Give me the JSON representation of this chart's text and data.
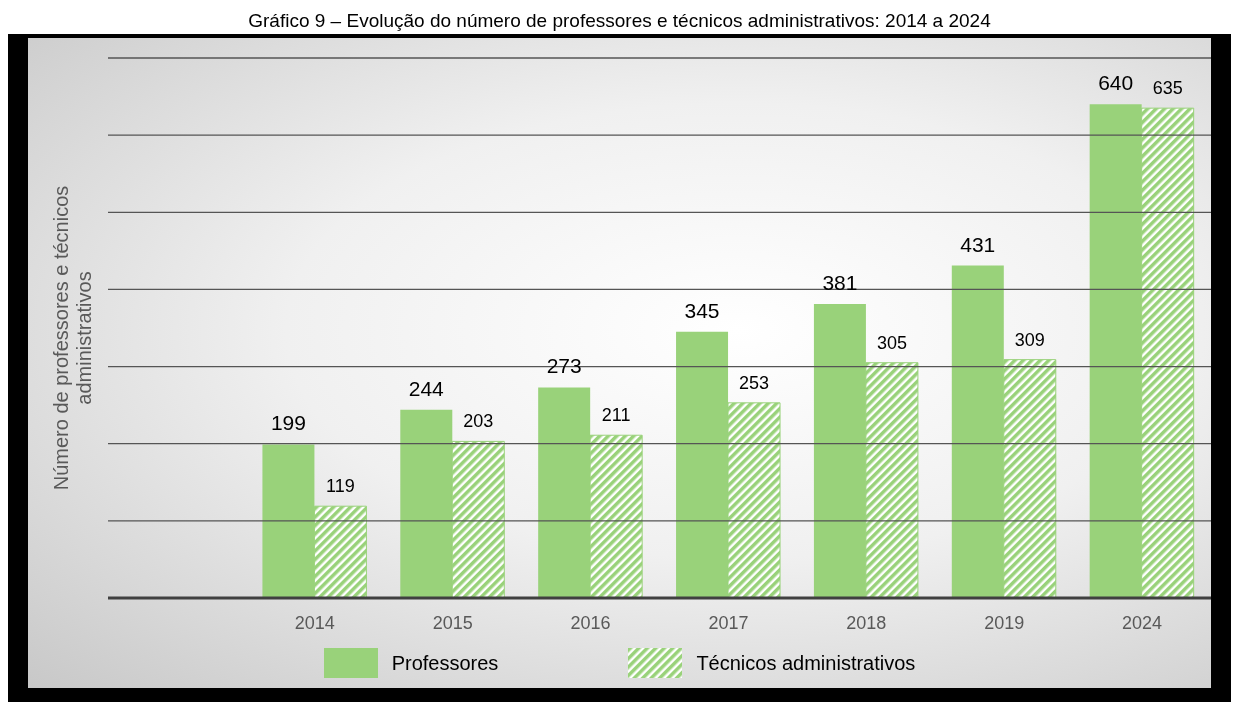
{
  "chart_data": {
    "type": "bar",
    "title": "Gráfico 9 – Evolução do número de professores e técnicos administrativos: 2014 a 2024",
    "ylabel": "Número de professores e técnicos administrativos",
    "categories": [
      null,
      "2014",
      "2015",
      "2016",
      "2017",
      "2018",
      "2019",
      "2024"
    ],
    "series": [
      {
        "name": "Professores",
        "color": "#99d27a",
        "values": [
          null,
          199,
          244,
          273,
          345,
          381,
          431,
          640
        ]
      },
      {
        "name": "Técnicos administrativos",
        "color": "#99d27a",
        "values": [
          null,
          119,
          203,
          211,
          253,
          305,
          309,
          635
        ]
      }
    ],
    "ylim": [
      0,
      700
    ],
    "yticks": [
      {
        "value": 0,
        "label": null
      },
      {
        "value": 100,
        "label": null
      },
      {
        "value": 200,
        "label": null
      },
      {
        "value": 300,
        "label": null
      },
      {
        "value": 400,
        "label": null
      },
      {
        "value": 500,
        "label": null
      },
      {
        "value": 600,
        "label": null
      },
      {
        "value": 700,
        "label": null
      }
    ],
    "tick_labels": "x",
    "grid": "y",
    "legend": "bottom",
    "data_labels": true
  }
}
